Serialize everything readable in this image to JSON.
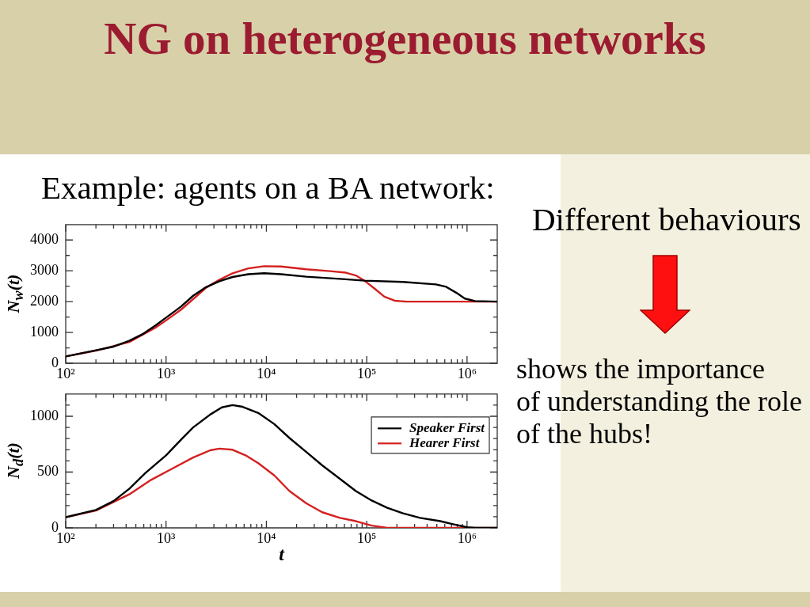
{
  "chart_data": [
    {
      "type": "line",
      "title": "NG on heterogeneous networks",
      "subtitle": "Example: agents on a BA network:",
      "annotations": [
        "Different behaviours",
        "shows the importance\nof understanding the role\nof the hubs!"
      ],
      "ylabel": "N$_{w}$(t)",
      "log": "x",
      "xlim": [
        100,
        2000000
      ],
      "ylim": [
        0,
        4500
      ],
      "xticks": [
        {
          "value": 100,
          "label": "10²"
        },
        {
          "value": 200,
          "label": null
        },
        {
          "value": 300,
          "label": null
        },
        {
          "value": 400,
          "label": null
        },
        {
          "value": 500,
          "label": null
        },
        {
          "value": 600,
          "label": null
        },
        {
          "value": 700,
          "label": null
        },
        {
          "value": 800,
          "label": null
        },
        {
          "value": 900,
          "label": null
        },
        {
          "value": 1000,
          "label": "10³"
        },
        {
          "value": 2000,
          "label": null
        },
        {
          "value": 3000,
          "label": null
        },
        {
          "value": 4000,
          "label": null
        },
        {
          "value": 5000,
          "label": null
        },
        {
          "value": 6000,
          "label": null
        },
        {
          "value": 7000,
          "label": null
        },
        {
          "value": 8000,
          "label": null
        },
        {
          "value": 9000,
          "label": null
        },
        {
          "value": 10000,
          "label": "10⁴"
        },
        {
          "value": 20000,
          "label": null
        },
        {
          "value": 30000,
          "label": null
        },
        {
          "value": 40000,
          "label": null
        },
        {
          "value": 50000,
          "label": null
        },
        {
          "value": 60000,
          "label": null
        },
        {
          "value": 70000,
          "label": null
        },
        {
          "value": 80000,
          "label": null
        },
        {
          "value": 90000,
          "label": null
        },
        {
          "value": 100000,
          "label": "10⁵"
        },
        {
          "value": 200000,
          "label": null
        },
        {
          "value": 300000,
          "label": null
        },
        {
          "value": 400000,
          "label": null
        },
        {
          "value": 500000,
          "label": null
        },
        {
          "value": 600000,
          "label": null
        },
        {
          "value": 700000,
          "label": null
        },
        {
          "value": 800000,
          "label": null
        },
        {
          "value": 900000,
          "label": null
        },
        {
          "value": 1000000,
          "label": "10⁶"
        }
      ],
      "yticks": [
        0,
        {
          "value": 500,
          "label": null
        },
        1000,
        {
          "value": 1500,
          "label": null
        },
        2000,
        {
          "value": 2500,
          "label": null
        },
        3000,
        {
          "value": 3500,
          "label": null
        },
        4000
      ],
      "series": [
        {
          "color": "#000000",
          "x": [
            100,
            200,
            300,
            430,
            580,
            780,
            1000,
            1410,
            1860,
            2500,
            3400,
            4600,
            6600,
            9500,
            14000,
            25000,
            54000,
            95000,
            230000,
            490000,
            620000,
            780000,
            950000,
            1200000,
            2000000
          ],
          "values": [
            220,
            420,
            540,
            730,
            940,
            1220,
            1480,
            1840,
            2190,
            2470,
            2660,
            2800,
            2890,
            2920,
            2890,
            2810,
            2740,
            2680,
            2640,
            2560,
            2480,
            2290,
            2100,
            2020,
            2000
          ]
        },
        {
          "color": "#d42020",
          "x": [
            100,
            200,
            430,
            780,
            1000,
            1410,
            1860,
            2500,
            3400,
            4600,
            6600,
            9500,
            14000,
            25000,
            43000,
            62000,
            78000,
            95000,
            120000,
            150000,
            190000,
            250000,
            2000000
          ],
          "values": [
            220,
            410,
            690,
            1150,
            1390,
            1740,
            2080,
            2450,
            2710,
            2920,
            3080,
            3150,
            3140,
            3050,
            2990,
            2940,
            2850,
            2680,
            2420,
            2160,
            2030,
            2000,
            2000
          ]
        }
      ]
    },
    {
      "type": "line",
      "xlabel": "t",
      "ylabel": "N$_{d}$(t)",
      "log": "x",
      "xlim": [
        100,
        2000000
      ],
      "ylim": [
        0,
        1200
      ],
      "legend": "top right",
      "xticks": [
        {
          "value": 100,
          "label": "10²"
        },
        {
          "value": 200,
          "label": null
        },
        {
          "value": 300,
          "label": null
        },
        {
          "value": 400,
          "label": null
        },
        {
          "value": 500,
          "label": null
        },
        {
          "value": 600,
          "label": null
        },
        {
          "value": 700,
          "label": null
        },
        {
          "value": 800,
          "label": null
        },
        {
          "value": 900,
          "label": null
        },
        {
          "value": 1000,
          "label": "10³"
        },
        {
          "value": 2000,
          "label": null
        },
        {
          "value": 3000,
          "label": null
        },
        {
          "value": 4000,
          "label": null
        },
        {
          "value": 5000,
          "label": null
        },
        {
          "value": 6000,
          "label": null
        },
        {
          "value": 7000,
          "label": null
        },
        {
          "value": 8000,
          "label": null
        },
        {
          "value": 9000,
          "label": null
        },
        {
          "value": 10000,
          "label": "10⁴"
        },
        {
          "value": 20000,
          "label": null
        },
        {
          "value": 30000,
          "label": null
        },
        {
          "value": 40000,
          "label": null
        },
        {
          "value": 50000,
          "label": null
        },
        {
          "value": 60000,
          "label": null
        },
        {
          "value": 70000,
          "label": null
        },
        {
          "value": 80000,
          "label": null
        },
        {
          "value": 90000,
          "label": null
        },
        {
          "value": 100000,
          "label": "10⁵"
        },
        {
          "value": 200000,
          "label": null
        },
        {
          "value": 300000,
          "label": null
        },
        {
          "value": 400000,
          "label": null
        },
        {
          "value": 500000,
          "label": null
        },
        {
          "value": 600000,
          "label": null
        },
        {
          "value": 700000,
          "label": null
        },
        {
          "value": 800000,
          "label": null
        },
        {
          "value": 900000,
          "label": null
        },
        {
          "value": 1000000,
          "label": "10⁶"
        }
      ],
      "yticks": [
        0,
        {
          "value": 100,
          "label": null
        },
        {
          "value": 200,
          "label": null
        },
        {
          "value": 300,
          "label": null
        },
        {
          "value": 400,
          "label": null
        },
        500,
        {
          "value": 600,
          "label": null
        },
        {
          "value": 700,
          "label": null
        },
        {
          "value": 800,
          "label": null
        },
        {
          "value": 900,
          "label": null
        },
        1000,
        {
          "value": 1100,
          "label": null
        }
      ],
      "series": [
        {
          "name": "Speaker First",
          "color": "#000000",
          "x": [
            100,
            200,
            300,
            430,
            620,
            1000,
            1410,
            1860,
            2750,
            3600,
            4600,
            5800,
            8300,
            12000,
            17000,
            25000,
            36000,
            54000,
            78000,
            112000,
            160000,
            230000,
            340000,
            540000,
            710000,
            1000000,
            1200000,
            2000000
          ],
          "values": [
            95,
            160,
            240,
            350,
            490,
            650,
            790,
            900,
            1015,
            1080,
            1100,
            1085,
            1030,
            930,
            805,
            680,
            560,
            440,
            330,
            245,
            180,
            130,
            90,
            60,
            35,
            5,
            0,
            0
          ]
        },
        {
          "name": "Hearer First",
          "color": "#d42020",
          "x": [
            100,
            200,
            430,
            710,
            1120,
            1860,
            2750,
            3400,
            4600,
            6200,
            8300,
            12000,
            17000,
            25000,
            36000,
            54000,
            78000,
            112000,
            160000,
            2000000
          ],
          "values": [
            95,
            155,
            300,
            430,
            525,
            630,
            695,
            710,
            700,
            650,
            580,
            470,
            330,
            220,
            140,
            90,
            60,
            20,
            0,
            0
          ]
        }
      ]
    }
  ]
}
